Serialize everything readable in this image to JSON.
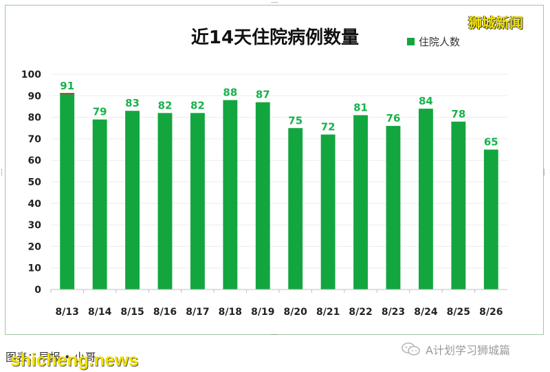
{
  "brand": "狮城新闻",
  "footer": {
    "source_text": "图表：早报 • 小哥",
    "watermark": "shicheng.news",
    "account": "A计划学习狮城篇"
  },
  "colors": {
    "bar": "#13a63f",
    "label": "#18b24a",
    "accent": "#c0392b"
  },
  "chart_data": {
    "type": "bar",
    "title": "近14天住院病例数量",
    "legend_position": "top-right",
    "categories": [
      "8/13",
      "8/14",
      "8/15",
      "8/16",
      "8/17",
      "8/18",
      "8/19",
      "8/20",
      "8/21",
      "8/22",
      "8/23",
      "8/24",
      "8/25",
      "8/26"
    ],
    "series": [
      {
        "name": "住院人数",
        "values": [
          91,
          79,
          83,
          82,
          82,
          88,
          87,
          75,
          72,
          81,
          76,
          84,
          78,
          65
        ]
      }
    ],
    "ylim": [
      0,
      100
    ],
    "yticks": [
      0,
      10,
      20,
      30,
      40,
      50,
      60,
      70,
      80,
      90,
      100
    ],
    "grid": true
  }
}
